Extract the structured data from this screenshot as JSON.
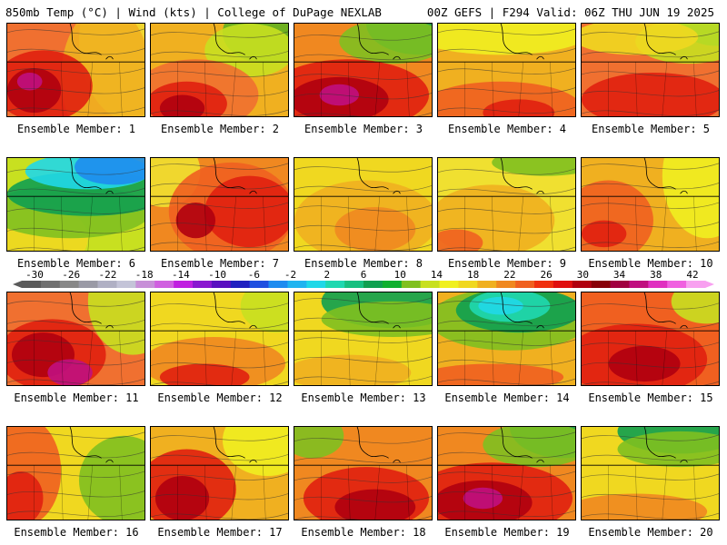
{
  "header": {
    "left": "850mb Temp (°C) | Wind (kts) | College of DuPage NEXLAB",
    "right": "00Z GEFS | F294 Valid: 06Z THU JUN 19 2025"
  },
  "caption_prefix": "Ensemble Member:",
  "members": [
    {
      "number": "1",
      "caption": "Ensemble Member: 1",
      "scheme": "warm-magenta-sw"
    },
    {
      "number": "2",
      "caption": "Ensemble Member: 2",
      "scheme": "warm-sw-green-ne"
    },
    {
      "number": "3",
      "caption": "Ensemble Member: 3",
      "scheme": "hot-magenta-green-ne"
    },
    {
      "number": "4",
      "caption": "Ensemble Member: 4",
      "scheme": "orange-south"
    },
    {
      "number": "5",
      "caption": "Ensemble Member: 5",
      "scheme": "warm-green-ne"
    },
    {
      "number": "6",
      "caption": "Ensemble Member: 6",
      "scheme": "cool-blue-north"
    },
    {
      "number": "7",
      "caption": "Ensemble Member: 7",
      "scheme": "hot-center"
    },
    {
      "number": "8",
      "caption": "Ensemble Member: 8",
      "scheme": "yellow-orange"
    },
    {
      "number": "9",
      "caption": "Ensemble Member: 9",
      "scheme": "yellow-green-top"
    },
    {
      "number": "10",
      "caption": "Ensemble Member: 10",
      "scheme": "orange-west"
    },
    {
      "number": "11",
      "caption": "Ensemble Member: 11",
      "scheme": "hot-magenta-south"
    },
    {
      "number": "12",
      "caption": "Ensemble Member: 12",
      "scheme": "yellow-red-south"
    },
    {
      "number": "13",
      "caption": "Ensemble Member: 13",
      "scheme": "green-north"
    },
    {
      "number": "14",
      "caption": "Ensemble Member: 14",
      "scheme": "cyan-north"
    },
    {
      "number": "15",
      "caption": "Ensemble Member: 15",
      "scheme": "hot-red"
    },
    {
      "number": "16",
      "caption": "Ensemble Member: 16",
      "scheme": "red-west-green-east"
    },
    {
      "number": "17",
      "caption": "Ensemble Member: 17",
      "scheme": "hot-west"
    },
    {
      "number": "18",
      "caption": "Ensemble Member: 18",
      "scheme": "hot-center-south"
    },
    {
      "number": "19",
      "caption": "Ensemble Member: 19",
      "scheme": "hot-magenta-green-ne"
    },
    {
      "number": "20",
      "caption": "Ensemble Member: 20",
      "scheme": "green-north-orange-south"
    }
  ],
  "colorbar": {
    "labels": [
      "-30",
      "-26",
      "-22",
      "-18",
      "-14",
      "-10",
      "-6",
      "-2",
      "2",
      "6",
      "10",
      "14",
      "18",
      "22",
      "26",
      "30",
      "34",
      "38",
      "42"
    ],
    "colors": [
      "#5a5a5a",
      "#707070",
      "#888888",
      "#9a9aa6",
      "#b0b0c4",
      "#c4c4d8",
      "#c890d8",
      "#d060e0",
      "#c020e0",
      "#8a18d0",
      "#5a10c0",
      "#2020c0",
      "#2050e0",
      "#1e8cf0",
      "#20b4f0",
      "#20d8e8",
      "#20d8b0",
      "#18c080",
      "#10a050",
      "#10b030",
      "#80c020",
      "#c8e020",
      "#f0f020",
      "#f0d820",
      "#f0b020",
      "#f08820",
      "#f06020",
      "#f03010",
      "#e01010",
      "#b00010",
      "#880008",
      "#a00040",
      "#c01080",
      "#e030c0",
      "#f060e0",
      "#f8a0f0"
    ]
  }
}
